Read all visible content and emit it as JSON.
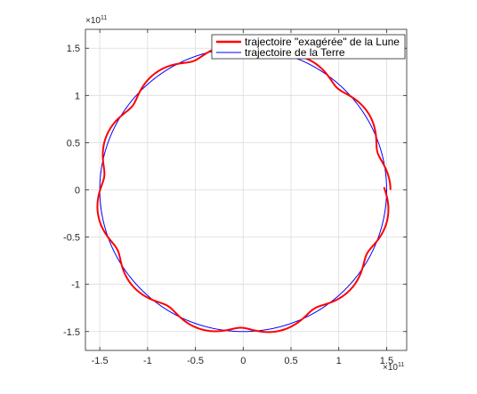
{
  "chart_data": {
    "type": "line",
    "title": "",
    "xlabel": "",
    "ylabel": "",
    "xlim": [
      -1.65,
      1.71
    ],
    "ylim": [
      -1.7,
      1.7
    ],
    "xticks": [
      -1.5,
      -1,
      -0.5,
      0,
      0.5,
      1,
      1.5
    ],
    "yticks": [
      -1.5,
      -1,
      -0.5,
      0,
      0.5,
      1,
      1.5
    ],
    "xtick_labels": [
      "-1.5",
      "-1",
      "-0.5",
      "0",
      "0.5",
      "1",
      "1.5"
    ],
    "ytick_labels": [
      "-1.5",
      "-1",
      "-0.5",
      "0",
      "0.5",
      "1",
      "1.5"
    ],
    "x_exponent": {
      "base": "×10",
      "power": "11"
    },
    "y_exponent": {
      "base": "×10",
      "power": "11"
    },
    "grid": true,
    "box": true,
    "aspect": "equal",
    "legend_position": "top-right",
    "series": [
      {
        "name": "trajectoire \"exagérée\" de la Lune",
        "color": "#ff0000",
        "description": "epicycle: earth orbit plus exaggerated lunar orbit",
        "earth_radius": 1.5,
        "moon_radius": 0.04,
        "moon_cycles_per_year": 12.37,
        "moon_initial_phase_deg": 0
      },
      {
        "name": "trajectoire de la Terre",
        "color": "#0000ff",
        "description": "circle",
        "radius": 1.5
      }
    ]
  }
}
